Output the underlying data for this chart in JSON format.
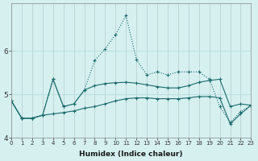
{
  "xlabel": "Humidex (Indice chaleur)",
  "background_color": "#d6f0f0",
  "grid_color": "#b8dede",
  "line_color": "#1a6b6b",
  "x": [
    0,
    1,
    2,
    3,
    4,
    5,
    6,
    7,
    8,
    9,
    10,
    11,
    12,
    13,
    14,
    15,
    16,
    17,
    18,
    19,
    20,
    21,
    22,
    23
  ],
  "line1_dotted": [
    4.85,
    4.45,
    4.45,
    4.52,
    5.35,
    4.72,
    4.78,
    5.1,
    5.78,
    6.05,
    6.38,
    6.82,
    5.8,
    5.45,
    5.52,
    5.45,
    5.52,
    5.52,
    5.52,
    5.35,
    4.72,
    4.35,
    4.6,
    4.75
  ],
  "line2_upper": [
    4.85,
    4.45,
    4.45,
    4.52,
    5.35,
    4.72,
    4.78,
    5.1,
    5.2,
    5.25,
    5.27,
    5.28,
    5.26,
    5.22,
    5.18,
    5.15,
    5.15,
    5.2,
    5.28,
    5.32,
    5.35,
    4.72,
    4.78,
    4.75
  ],
  "line3_lower": [
    4.85,
    4.45,
    4.45,
    4.52,
    4.55,
    4.58,
    4.62,
    4.68,
    4.72,
    4.78,
    4.85,
    4.9,
    4.92,
    4.92,
    4.9,
    4.9,
    4.9,
    4.92,
    4.95,
    4.95,
    4.92,
    4.32,
    4.55,
    4.75
  ],
  "xlim": [
    0,
    23
  ],
  "ylim": [
    4.0,
    7.1
  ],
  "yticks": [
    4,
    5,
    6
  ],
  "xticks": [
    0,
    1,
    2,
    3,
    4,
    5,
    6,
    7,
    8,
    9,
    10,
    11,
    12,
    13,
    14,
    15,
    16,
    17,
    18,
    19,
    20,
    21,
    22,
    23
  ]
}
